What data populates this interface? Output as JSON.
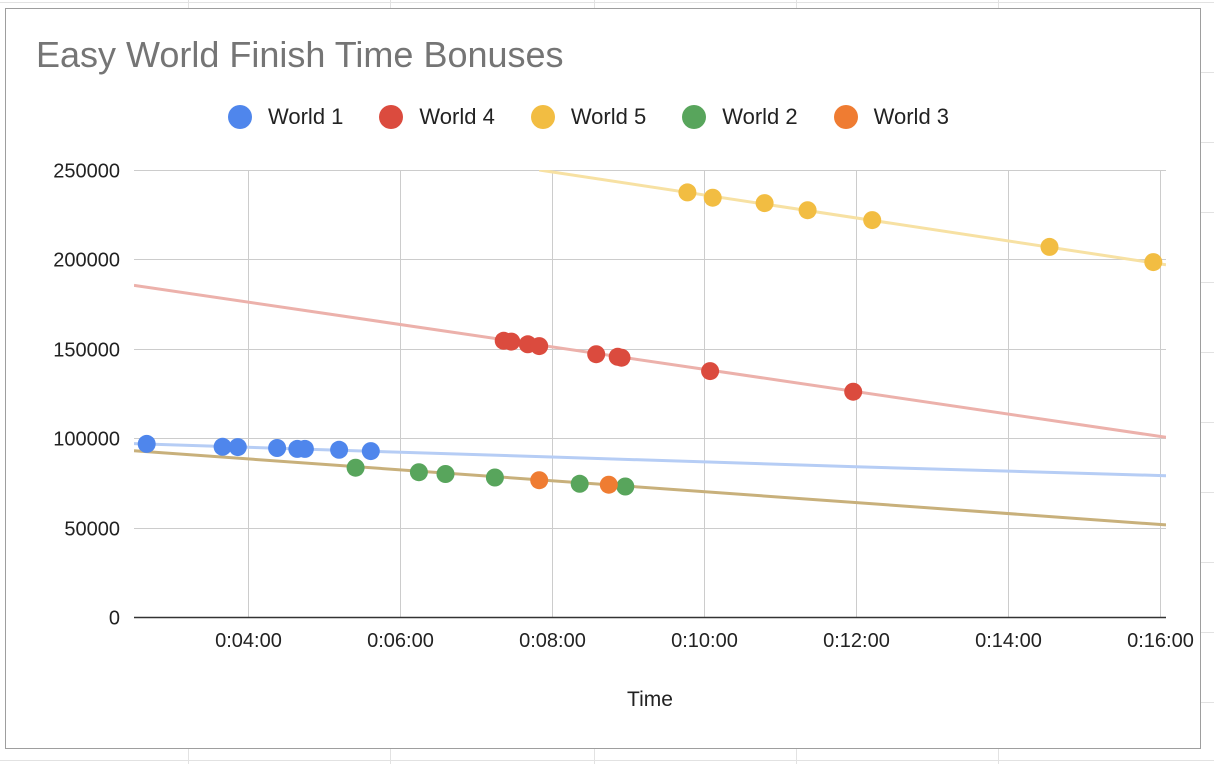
{
  "chart_data": {
    "type": "scatter",
    "title": "Easy World Finish Time Bonuses",
    "xlabel": "Time",
    "ylabel": "",
    "x_format": "h:mm:ss",
    "xlim": [
      "0:02:30",
      "0:16:05"
    ],
    "ylim": [
      0,
      250000
    ],
    "x_ticks": [
      "0:04:00",
      "0:06:00",
      "0:08:00",
      "0:10:00",
      "0:12:00",
      "0:14:00",
      "0:16:00"
    ],
    "y_ticks": [
      "0",
      "50000",
      "100000",
      "150000",
      "200000",
      "250000"
    ],
    "grid": true,
    "legend_position": "top",
    "series": [
      {
        "name": "World 1",
        "color": "#4f86ec",
        "trendline": {
          "type": "curve",
          "color": "#b6cdf5",
          "points": [
            [
              "0:02:30",
              97000
            ],
            [
              "0:05:00",
              93500
            ],
            [
              "0:08:00",
              89500
            ],
            [
              "0:12:00",
              84000
            ],
            [
              "0:16:05",
              79000
            ]
          ]
        },
        "points": [
          [
            "0:02:40",
            96800
          ],
          [
            "0:03:40",
            95200
          ],
          [
            "0:03:52",
            95000
          ],
          [
            "0:04:23",
            94500
          ],
          [
            "0:04:39",
            94000
          ],
          [
            "0:04:45",
            94000
          ],
          [
            "0:05:12",
            93500
          ],
          [
            "0:05:37",
            92800
          ]
        ]
      },
      {
        "name": "World 4",
        "color": "#db4b3e",
        "trendline": {
          "type": "line",
          "color": "#ecb1ab",
          "points": [
            [
              "0:02:30",
              185500
            ],
            [
              "0:16:05",
              100500
            ]
          ]
        },
        "points": [
          [
            "0:07:22",
            154500
          ],
          [
            "0:07:28",
            154000
          ],
          [
            "0:07:41",
            152500
          ],
          [
            "0:07:50",
            151500
          ],
          [
            "0:08:35",
            147000
          ],
          [
            "0:08:52",
            145500
          ],
          [
            "0:08:55",
            145000
          ],
          [
            "0:10:05",
            137500
          ],
          [
            "0:11:58",
            126000
          ]
        ]
      },
      {
        "name": "World 5",
        "color": "#f2bd42",
        "trendline": {
          "type": "line",
          "color": "#f7e1a3",
          "points": [
            [
              "0:07:50",
              250000
            ],
            [
              "0:16:05",
              197000
            ]
          ]
        },
        "points": [
          [
            "0:09:47",
            237500
          ],
          [
            "0:10:07",
            234500
          ],
          [
            "0:10:48",
            231500
          ],
          [
            "0:11:22",
            227500
          ],
          [
            "0:12:13",
            222000
          ],
          [
            "0:14:33",
            207000
          ],
          [
            "0:15:55",
            198500
          ]
        ]
      },
      {
        "name": "World 2",
        "color": "#58a55c",
        "trendline": {
          "type": "line",
          "color": "#c8b07b",
          "points": [
            [
              "0:02:30",
              93000
            ],
            [
              "0:16:05",
              51500
            ]
          ]
        },
        "points": [
          [
            "0:05:25",
            83500
          ],
          [
            "0:06:15",
            81000
          ],
          [
            "0:06:36",
            80000
          ],
          [
            "0:07:15",
            78000
          ],
          [
            "0:08:22",
            74500
          ],
          [
            "0:08:58",
            73000
          ]
        ]
      },
      {
        "name": "World 3",
        "color": "#ef7c32",
        "points": [
          [
            "0:07:50",
            76500
          ],
          [
            "0:08:45",
            74000
          ]
        ]
      }
    ]
  }
}
